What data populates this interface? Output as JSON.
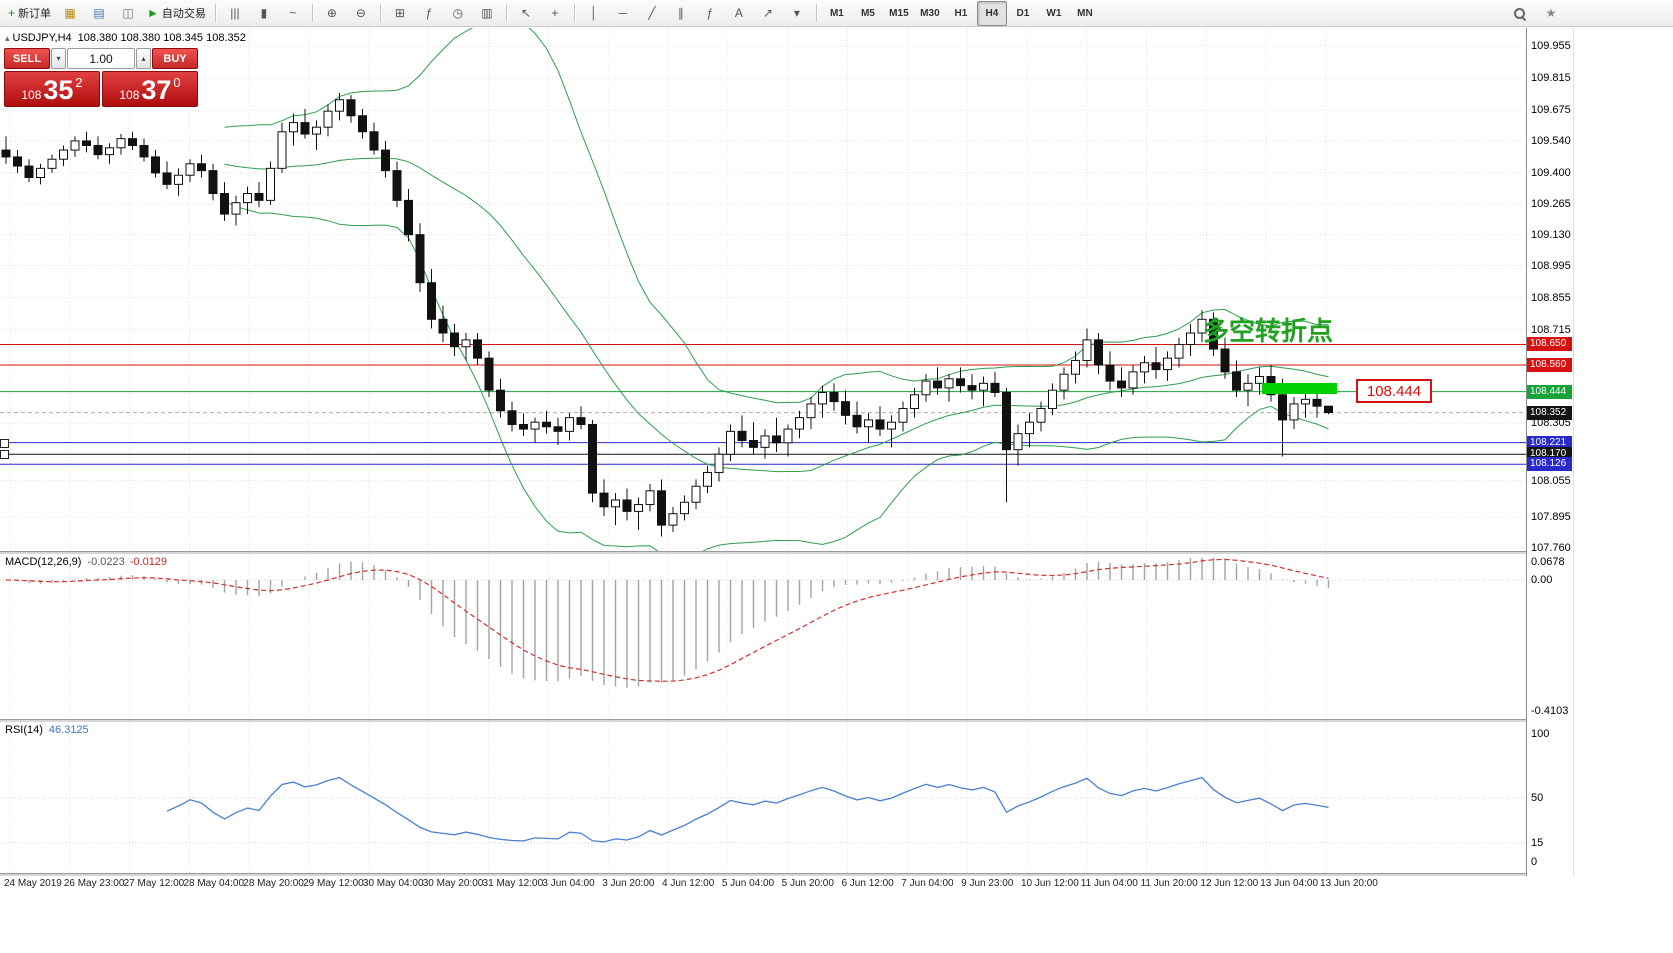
{
  "toolbar": {
    "groups": [
      {
        "items": [
          {
            "name": "new-order-button",
            "glyph": "+",
            "glyph_color": "#18971f",
            "label": "新订单"
          },
          {
            "name": "chart-window-icon",
            "glyph": "▦",
            "glyph_color": "#b8860b"
          },
          {
            "name": "profiles-icon",
            "glyph": "▤",
            "glyph_color": "#4477bb"
          },
          {
            "name": "data-window-icon",
            "glyph": "◫",
            "glyph_color": "#777777"
          },
          {
            "name": "autotrading-button",
            "glyph": "►",
            "glyph_color": "#18a018",
            "label": "自动交易"
          }
        ]
      },
      {
        "items": [
          {
            "name": "bar-chart-icon",
            "glyph": "|||"
          },
          {
            "name": "candlestick-chart-icon",
            "glyph": "▮"
          },
          {
            "name": "line-chart-icon",
            "glyph": "~"
          }
        ]
      },
      {
        "items": [
          {
            "name": "zoom-in-icon",
            "glyph": "⊕"
          },
          {
            "name": "zoom-out-icon",
            "glyph": "⊖"
          }
        ]
      },
      {
        "items": [
          {
            "name": "tile-windows-icon",
            "glyph": "⊞"
          },
          {
            "name": "indicators-icon",
            "glyph": "ƒ"
          },
          {
            "name": "periods-icon",
            "glyph": "◷"
          },
          {
            "name": "templates-icon",
            "glyph": "▥"
          }
        ]
      },
      {
        "items": [
          {
            "name": "cursor-icon",
            "glyph": "↖"
          },
          {
            "name": "crosshair-icon",
            "glyph": "+"
          }
        ]
      },
      {
        "items": [
          {
            "name": "vertical-line-icon",
            "glyph": "│"
          },
          {
            "name": "horizontal-line-icon",
            "glyph": "─"
          },
          {
            "name": "trendline-icon",
            "glyph": "╱"
          },
          {
            "name": "equidistant-channel-icon",
            "glyph": "∥"
          },
          {
            "name": "fibonacci-icon",
            "glyph": "ƒ"
          },
          {
            "name": "text-label-icon",
            "glyph": "A"
          },
          {
            "name": "arrows-icon",
            "glyph": "↗"
          },
          {
            "name": "objects-dropdown-icon",
            "glyph": "▾"
          }
        ]
      },
      {
        "items": [
          {
            "name": "timeframe-m1",
            "label": "M1",
            "tf": true
          },
          {
            "name": "timeframe-m5",
            "label": "M5",
            "tf": true
          },
          {
            "name": "timeframe-m15",
            "label": "M15",
            "tf": true
          },
          {
            "name": "timeframe-m30",
            "label": "M30",
            "tf": true
          },
          {
            "name": "timeframe-h1",
            "label": "H1",
            "tf": true
          },
          {
            "name": "timeframe-h4",
            "label": "H4",
            "tf": true,
            "active": true
          },
          {
            "name": "timeframe-d1",
            "label": "D1",
            "tf": true
          },
          {
            "name": "timeframe-w1",
            "label": "W1",
            "tf": true
          },
          {
            "name": "timeframe-mn",
            "label": "MN",
            "tf": true
          }
        ]
      }
    ],
    "right": [
      {
        "name": "search-icon",
        "special": "mag"
      },
      {
        "name": "favorites-icon",
        "glyph": "★",
        "glyph_color": "#888888"
      }
    ]
  },
  "symbol_header": {
    "collapse_glyph": "▴",
    "symbol": "USDJPY,H4",
    "ohlc": "108.380 108.380 108.345 108.352"
  },
  "one_click": {
    "sell": "SELL",
    "buy": "BUY",
    "volume": "1.00",
    "vol_down": "▾",
    "vol_up": "▴",
    "sell_price_prefix": "108",
    "sell_price_main": "35",
    "sell_price_sup": "2",
    "buy_price_prefix": "108",
    "buy_price_main": "37",
    "buy_price_sup": "0"
  },
  "annotation": {
    "text": "多空转折点",
    "color": "#21a121"
  },
  "callout": {
    "text": "108.444",
    "color": "#d51111"
  },
  "macd_header": {
    "label": "MACD(12,26,9)",
    "value1": "-0.0223",
    "value2": "-0.0129"
  },
  "rsi_header": {
    "label": "RSI(14)",
    "value": "46.3125"
  },
  "chart_data": {
    "type": "candlestick",
    "symbol": "USDJPY",
    "timeframe": "H4",
    "current_bid": 108.352,
    "price_axis_ticks": [
      "109.955",
      "109.815",
      "109.675",
      "109.540",
      "109.400",
      "109.265",
      "109.130",
      "108.995",
      "108.855",
      "108.715",
      "108.305",
      "108.055",
      "107.895",
      "107.760"
    ],
    "macd_axis": {
      "top": "0.0678",
      "zero": "0.00",
      "bottom": "-0.4103"
    },
    "rsi_axis": [
      "100",
      "50",
      "15",
      "0"
    ],
    "time_labels": [
      "24 May 2019",
      "26 May 23:00",
      "27 May 12:00",
      "28 May 04:00",
      "28 May 20:00",
      "29 May 12:00",
      "30 May 04:00",
      "30 May 20:00",
      "31 May 12:00",
      "3 Jun 04:00",
      "3 Jun 20:00",
      "4 Jun 12:00",
      "5 Jun 04:00",
      "5 Jun 20:00",
      "6 Jun 12:00",
      "7 Jun 04:00",
      "9 Jun 23:00",
      "10 Jun 12:00",
      "11 Jun 04:00",
      "11 Jun 20:00",
      "12 Jun 12:00",
      "13 Jun 04:00",
      "13 Jun 20:00"
    ],
    "horizontal_lines": [
      {
        "name": "resistance-line-upper",
        "price": 108.65,
        "color": "#d51111",
        "style": "solid",
        "badge": "108.650",
        "badge_bg": "#d51111"
      },
      {
        "name": "resistance-line-lower",
        "price": 108.56,
        "color": "#d51111",
        "style": "solid",
        "badge": "108.560",
        "badge_bg": "#d51111"
      },
      {
        "name": "pivot-line",
        "price": 108.444,
        "color": "#17a339",
        "style": "solid",
        "badge": "108.444",
        "badge_bg": "#17a339"
      },
      {
        "name": "bid-price-line",
        "price": 108.352,
        "color": "#ababab",
        "style": "dashed",
        "badge": "108.352",
        "badge_bg": "#151515"
      },
      {
        "name": "support-line-upper",
        "price": 108.221,
        "color": "#2929cc",
        "style": "solid",
        "badge": "108.221",
        "badge_bg": "#2929cc",
        "handle": true
      },
      {
        "name": "support-line-mid",
        "price": 108.17,
        "color": "#151515",
        "style": "solid",
        "badge": "108.170",
        "badge_bg": "#151515",
        "handle": true
      },
      {
        "name": "support-line-lower",
        "price": 108.126,
        "color": "#2929cc",
        "style": "solid",
        "badge": "108.126",
        "badge_bg": "#2929cc"
      }
    ],
    "indicators": {
      "bollinger": {
        "period": 20,
        "deviation": 2,
        "color": "#2f9e4f"
      },
      "macd": {
        "fast": 12,
        "slow": 26,
        "signal": 9,
        "main_value": -0.0223,
        "signal_value": -0.0129,
        "histogram_color": "#a3a3a3",
        "signal_color": "#d32f2f"
      },
      "rsi": {
        "period": 14,
        "value": 46.3125,
        "color": "#4a7fd4"
      }
    },
    "candles": [
      [
        109.5,
        109.56,
        109.44,
        109.47
      ],
      [
        109.47,
        109.5,
        109.4,
        109.43
      ],
      [
        109.43,
        109.46,
        109.36,
        109.38
      ],
      [
        109.38,
        109.44,
        109.35,
        109.42
      ],
      [
        109.42,
        109.48,
        109.4,
        109.46
      ],
      [
        109.46,
        109.52,
        109.43,
        109.5
      ],
      [
        109.5,
        109.56,
        109.47,
        109.54
      ],
      [
        109.54,
        109.58,
        109.49,
        109.52
      ],
      [
        109.52,
        109.56,
        109.46,
        109.48
      ],
      [
        109.48,
        109.53,
        109.44,
        109.51
      ],
      [
        109.51,
        109.57,
        109.48,
        109.55
      ],
      [
        109.55,
        109.58,
        109.5,
        109.52
      ],
      [
        109.52,
        109.55,
        109.45,
        109.47
      ],
      [
        109.47,
        109.5,
        109.38,
        109.4
      ],
      [
        109.4,
        109.45,
        109.33,
        109.35
      ],
      [
        109.35,
        109.42,
        109.3,
        109.39
      ],
      [
        109.39,
        109.46,
        109.36,
        109.44
      ],
      [
        109.44,
        109.48,
        109.38,
        109.41
      ],
      [
        109.41,
        109.44,
        109.28,
        109.31
      ],
      [
        109.31,
        109.36,
        109.19,
        109.22
      ],
      [
        109.22,
        109.3,
        109.17,
        109.27
      ],
      [
        109.27,
        109.34,
        109.22,
        109.31
      ],
      [
        109.31,
        109.36,
        109.25,
        109.28
      ],
      [
        109.28,
        109.45,
        109.26,
        109.42
      ],
      [
        109.42,
        109.62,
        109.4,
        109.58
      ],
      [
        109.58,
        109.66,
        109.52,
        109.62
      ],
      [
        109.62,
        109.68,
        109.55,
        109.57
      ],
      [
        109.57,
        109.63,
        109.5,
        109.6
      ],
      [
        109.6,
        109.7,
        109.56,
        109.67
      ],
      [
        109.67,
        109.75,
        109.63,
        109.72
      ],
      [
        109.72,
        109.74,
        109.62,
        109.65
      ],
      [
        109.65,
        109.68,
        109.55,
        109.58
      ],
      [
        109.58,
        109.62,
        109.48,
        109.5
      ],
      [
        109.5,
        109.54,
        109.38,
        109.41
      ],
      [
        109.41,
        109.45,
        109.25,
        109.28
      ],
      [
        109.28,
        109.33,
        109.1,
        109.13
      ],
      [
        109.13,
        109.18,
        108.88,
        108.92
      ],
      [
        108.92,
        108.98,
        108.72,
        108.76
      ],
      [
        108.76,
        108.82,
        108.66,
        108.7
      ],
      [
        108.7,
        108.74,
        108.6,
        108.64
      ],
      [
        108.64,
        108.7,
        108.58,
        108.67
      ],
      [
        108.67,
        108.7,
        108.56,
        108.59
      ],
      [
        108.59,
        108.62,
        108.42,
        108.45
      ],
      [
        108.45,
        108.5,
        108.33,
        108.36
      ],
      [
        108.36,
        108.4,
        108.27,
        108.3
      ],
      [
        108.3,
        108.35,
        108.25,
        108.28
      ],
      [
        108.28,
        108.33,
        108.22,
        108.31
      ],
      [
        108.31,
        108.36,
        108.26,
        108.29
      ],
      [
        108.29,
        108.33,
        108.21,
        108.27
      ],
      [
        108.27,
        108.35,
        108.23,
        108.33
      ],
      [
        108.33,
        108.38,
        108.28,
        108.3
      ],
      [
        108.3,
        108.32,
        107.96,
        108.0
      ],
      [
        108.0,
        108.06,
        107.9,
        107.94
      ],
      [
        107.94,
        108.0,
        107.86,
        107.97
      ],
      [
        107.97,
        108.02,
        107.88,
        107.92
      ],
      [
        107.92,
        107.98,
        107.84,
        107.95
      ],
      [
        107.95,
        108.04,
        107.92,
        108.01
      ],
      [
        108.01,
        108.06,
        107.81,
        107.86
      ],
      [
        107.86,
        107.94,
        107.83,
        107.91
      ],
      [
        107.91,
        107.99,
        107.88,
        107.96
      ],
      [
        107.96,
        108.06,
        107.93,
        108.03
      ],
      [
        108.03,
        108.12,
        108.0,
        108.09
      ],
      [
        108.09,
        108.2,
        108.05,
        108.17
      ],
      [
        108.17,
        108.3,
        108.14,
        108.27
      ],
      [
        108.27,
        108.34,
        108.2,
        108.23
      ],
      [
        108.23,
        108.31,
        108.17,
        108.2
      ],
      [
        108.2,
        108.28,
        108.15,
        108.25
      ],
      [
        108.25,
        108.33,
        108.18,
        108.22
      ],
      [
        108.22,
        108.3,
        108.16,
        108.28
      ],
      [
        108.28,
        108.36,
        108.24,
        108.33
      ],
      [
        108.33,
        108.42,
        108.28,
        108.39
      ],
      [
        108.39,
        108.47,
        108.33,
        108.44
      ],
      [
        108.44,
        108.48,
        108.36,
        108.4
      ],
      [
        108.4,
        108.45,
        108.3,
        108.34
      ],
      [
        108.34,
        108.4,
        108.26,
        108.29
      ],
      [
        108.29,
        108.35,
        108.22,
        108.32
      ],
      [
        108.32,
        108.38,
        108.25,
        108.28
      ],
      [
        108.28,
        108.34,
        108.2,
        108.31
      ],
      [
        108.31,
        108.4,
        108.27,
        108.37
      ],
      [
        108.37,
        108.46,
        108.33,
        108.43
      ],
      [
        108.43,
        108.52,
        108.4,
        108.49
      ],
      [
        108.49,
        108.55,
        108.43,
        108.46
      ],
      [
        108.46,
        108.52,
        108.4,
        108.5
      ],
      [
        108.5,
        108.55,
        108.44,
        108.47
      ],
      [
        108.47,
        108.52,
        108.41,
        108.45
      ],
      [
        108.45,
        108.51,
        108.38,
        108.48
      ],
      [
        108.48,
        108.53,
        108.42,
        108.44
      ],
      [
        108.44,
        108.46,
        107.96,
        108.19
      ],
      [
        108.19,
        108.3,
        108.12,
        108.26
      ],
      [
        108.26,
        108.35,
        108.2,
        108.31
      ],
      [
        108.31,
        108.4,
        108.27,
        108.37
      ],
      [
        108.37,
        108.48,
        108.34,
        108.45
      ],
      [
        108.45,
        108.55,
        108.41,
        108.52
      ],
      [
        108.52,
        108.62,
        108.48,
        108.58
      ],
      [
        108.58,
        108.72,
        108.55,
        108.67
      ],
      [
        108.67,
        108.7,
        108.52,
        108.56
      ],
      [
        108.56,
        108.62,
        108.45,
        108.49
      ],
      [
        108.49,
        108.55,
        108.42,
        108.46
      ],
      [
        108.46,
        108.56,
        108.43,
        108.53
      ],
      [
        108.53,
        108.6,
        108.48,
        108.57
      ],
      [
        108.57,
        108.64,
        108.5,
        108.54
      ],
      [
        108.54,
        108.62,
        108.49,
        108.59
      ],
      [
        108.59,
        108.68,
        108.55,
        108.65
      ],
      [
        108.65,
        108.74,
        108.6,
        108.7
      ],
      [
        108.7,
        108.8,
        108.66,
        108.76
      ],
      [
        108.76,
        108.79,
        108.6,
        108.63
      ],
      [
        108.63,
        108.68,
        108.5,
        108.53
      ],
      [
        108.53,
        108.58,
        108.42,
        108.45
      ],
      [
        108.45,
        108.52,
        108.38,
        108.48
      ],
      [
        108.48,
        108.55,
        108.43,
        108.51
      ],
      [
        108.51,
        108.56,
        108.4,
        108.43
      ],
      [
        108.43,
        108.5,
        108.16,
        108.32
      ],
      [
        108.32,
        108.42,
        108.28,
        108.39
      ],
      [
        108.39,
        108.45,
        108.33,
        108.41
      ],
      [
        108.41,
        108.44,
        108.33,
        108.38
      ],
      [
        108.38,
        108.38,
        108.345,
        108.352
      ]
    ]
  }
}
